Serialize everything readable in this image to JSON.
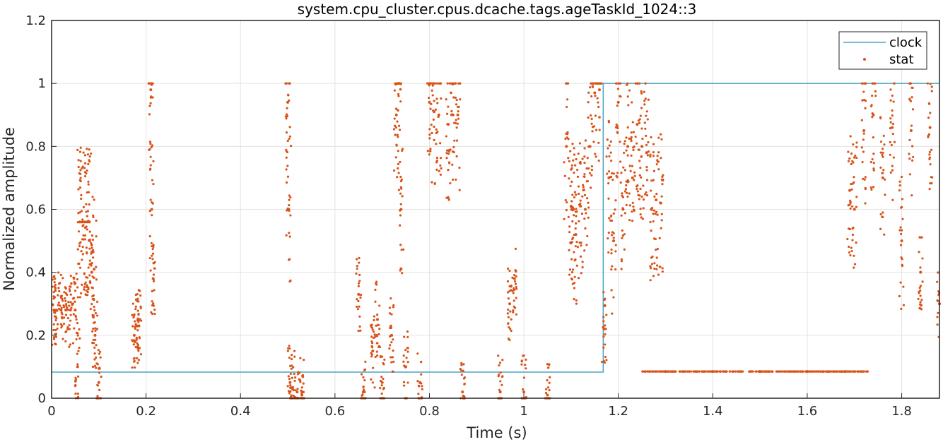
{
  "chart_data": {
    "type": "line",
    "title": "system.cpu_cluster.cpus.dcache.tags.ageTaskId_1024::3",
    "xlabel": "Time (s)",
    "ylabel": "Normalized amplitude",
    "xlim": [
      0,
      1.88
    ],
    "ylim": [
      0,
      1.2
    ],
    "xticks": [
      "0",
      "0.2",
      "0.4",
      "0.6",
      "0.8",
      "1",
      "1.2",
      "1.4",
      "1.6",
      "1.8"
    ],
    "yticks": [
      "0",
      "0.2",
      "0.4",
      "0.6",
      "0.8",
      "1",
      "1.2"
    ],
    "grid": true,
    "legend_position": "top-right",
    "colors": {
      "clock": "#4aa3c4",
      "stat": "#d95319",
      "grid": "#e3e3e3",
      "axis": "#262626"
    },
    "series": [
      {
        "name": "clock",
        "type": "line",
        "x": [
          0,
          1.168,
          1.168,
          1.88
        ],
        "y": [
          0.083,
          0.083,
          1.0,
          1.0
        ]
      },
      {
        "name": "stat",
        "type": "scatter",
        "summary": "dense orange dot clusters; values approximated from the axes",
        "x": [
          0.005,
          0.01,
          0.02,
          0.03,
          0.04,
          0.05,
          0.055,
          0.06,
          0.065,
          0.07,
          0.075,
          0.08,
          0.085,
          0.09,
          0.092,
          0.1,
          0.175,
          0.18,
          0.185,
          0.21,
          0.212,
          0.215,
          0.5,
          0.502,
          0.505,
          0.51,
          0.52,
          0.53,
          0.65,
          0.66,
          0.68,
          0.69,
          0.7,
          0.72,
          0.73,
          0.735,
          0.74,
          0.75,
          0.78,
          0.8,
          0.81,
          0.82,
          0.84,
          0.85,
          0.86,
          0.87,
          0.95,
          0.97,
          0.98,
          1.0,
          1.05,
          1.09,
          1.1,
          1.105,
          1.11,
          1.12,
          1.13,
          1.14,
          1.15,
          1.16,
          1.17,
          1.18,
          1.19,
          1.2,
          1.21,
          1.22,
          1.23,
          1.24,
          1.25,
          1.26,
          1.27,
          1.28,
          1.29,
          1.3,
          1.4,
          1.5,
          1.6,
          1.68,
          1.69,
          1.7,
          1.72,
          1.74,
          1.76,
          1.78,
          1.8,
          1.82,
          1.84,
          1.86,
          1.88
        ],
        "y": [
          0.28,
          0.28,
          0.28,
          0.28,
          0.28,
          0.28,
          0.1,
          0.56,
          0.56,
          0.56,
          0.56,
          0.56,
          0.4,
          0.41,
          0.2,
          0.05,
          0.2,
          0.23,
          0.23,
          0.98,
          0.6,
          0.38,
          0.94,
          0.6,
          0.05,
          0.03,
          0.02,
          0.01,
          0.33,
          0.02,
          0.15,
          0.25,
          0.05,
          0.2,
          0.9,
          1.0,
          0.6,
          0.1,
          0.05,
          0.94,
          0.91,
          0.9,
          0.87,
          0.9,
          0.9,
          0.02,
          0.02,
          0.3,
          0.38,
          0.02,
          0.01,
          0.8,
          0.61,
          0.6,
          0.52,
          0.61,
          0.6,
          0.8,
          0.97,
          0.98,
          0.22,
          0.7,
          0.5,
          0.94,
          0.6,
          0.8,
          0.7,
          0.87,
          0.8,
          0.78,
          0.6,
          0.63,
          0.62,
          0.085,
          0.085,
          0.085,
          0.085,
          0.085,
          0.66,
          0.6,
          0.85,
          0.9,
          0.7,
          0.86,
          0.5,
          0.85,
          0.4,
          0.86,
          0.3
        ]
      }
    ]
  }
}
